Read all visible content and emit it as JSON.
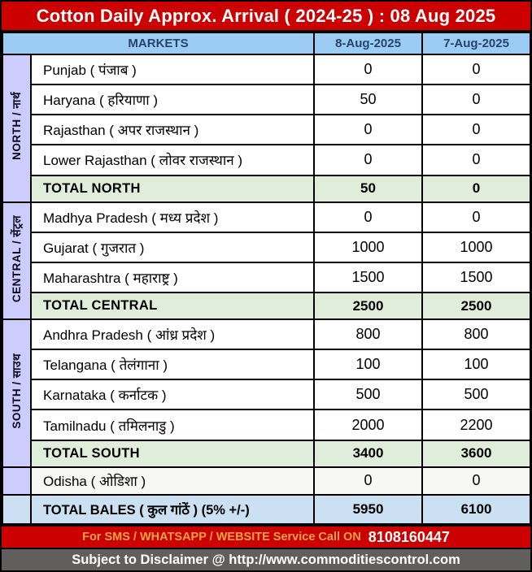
{
  "title": "Cotton Daily Approx. Arrival ( 2024-25 ) : 08 Aug 2025",
  "header": {
    "markets": "MARKETS",
    "date_col_1": "8-Aug-2025",
    "date_col_2": "7-Aug-2025"
  },
  "sections": [
    {
      "label": "NORTH / नार्थ",
      "rows": [
        {
          "name": "Punjab ( पंजाब )",
          "v1": "0",
          "v2": "0"
        },
        {
          "name": "Haryana ( हरियाणा )",
          "v1": "50",
          "v2": "0"
        },
        {
          "name": "Rajasthan ( अपर राजस्थान )",
          "v1": "0",
          "v2": "0"
        },
        {
          "name": "Lower Rajasthan ( लोवर राजस्थान )",
          "v1": "0",
          "v2": "0"
        }
      ],
      "total": {
        "label": "TOTAL NORTH",
        "v1": "50",
        "v2": "0"
      }
    },
    {
      "label": "CENTRAL / सेंट्रल",
      "rows": [
        {
          "name": "Madhya Pradesh ( मध्य प्रदेश )",
          "v1": "0",
          "v2": "0"
        },
        {
          "name": "Gujarat ( गुजरात )",
          "v1": "1000",
          "v2": "1000"
        },
        {
          "name": "Maharashtra ( महाराष्ट्र )",
          "v1": "1500",
          "v2": "1500"
        }
      ],
      "total": {
        "label": "TOTAL CENTRAL",
        "v1": "2500",
        "v2": "2500"
      }
    },
    {
      "label": "SOUTH / साउथ",
      "rows": [
        {
          "name": "Andhra Pradesh ( आंध्र प्रदेश )",
          "v1": "800",
          "v2": "800"
        },
        {
          "name": "Telangana ( तेलंगाना )",
          "v1": "100",
          "v2": "100"
        },
        {
          "name": "Karnataka ( कर्नाटक )",
          "v1": "500",
          "v2": "500"
        },
        {
          "name": "Tamilnadu ( तमिलनाडु )",
          "v1": "2000",
          "v2": "2200"
        }
      ],
      "total": {
        "label": "TOTAL SOUTH",
        "v1": "3400",
        "v2": "3600"
      }
    }
  ],
  "odisha": {
    "name": "Odisha ( ओडिशा )",
    "v1": "0",
    "v2": "0"
  },
  "total_bales": {
    "label": "TOTAL BALES ( कुल गांठें ) (5% +/-)",
    "v1": "5950",
    "v2": "6100"
  },
  "footer": {
    "sms_text": "For SMS / WHATSAPP / WEBSITE Service Call  ON",
    "phone": "8108160447",
    "disclaimer": "Subject to Disclaimer @  http://www.commoditiescontrol.com"
  },
  "colors": {
    "title_red": "#CC0000",
    "header_blue": "#9CCBF3",
    "header_text_navy": "#24466B",
    "region_lavender": "#CCCCFF",
    "total_green": "#E1EDDB",
    "bales_blue": "#CBE0F2",
    "odisha_offwhite": "#F7F7F3",
    "sms_orange": "#F0A73C",
    "disclaimer_gray": "#615E5E"
  }
}
